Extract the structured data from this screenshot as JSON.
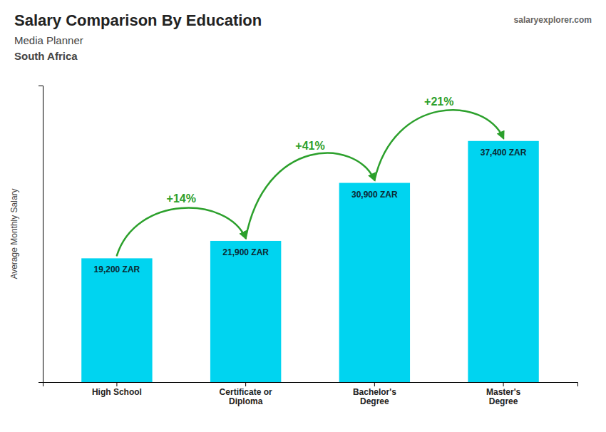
{
  "chart_data": {
    "type": "bar",
    "title": "Salary Comparison By Education",
    "subtitle": [
      "Media Planner",
      "South Africa"
    ],
    "source": "salaryexplorer.com",
    "y_label": "Average Monthly Salary",
    "categories": [
      "High School",
      "Certificate or\nDiploma",
      "Bachelor's\nDegree",
      "Master's\nDegree"
    ],
    "values": [
      19200,
      21900,
      30900,
      37400
    ],
    "value_labels": [
      "19,200 ZAR",
      "21,900 ZAR",
      "30,900 ZAR",
      "37,400 ZAR"
    ],
    "data_labels": true,
    "color": "#00d4f0",
    "ylim": [
      0,
      46000
    ],
    "yticks": [],
    "grid": false,
    "tick_labels": "x",
    "annotations": [
      {
        "from": 0,
        "to": 1,
        "text": "+14%"
      },
      {
        "from": 1,
        "to": 2,
        "text": "+41%"
      },
      {
        "from": 2,
        "to": 3,
        "text": "+21%"
      }
    ]
  }
}
